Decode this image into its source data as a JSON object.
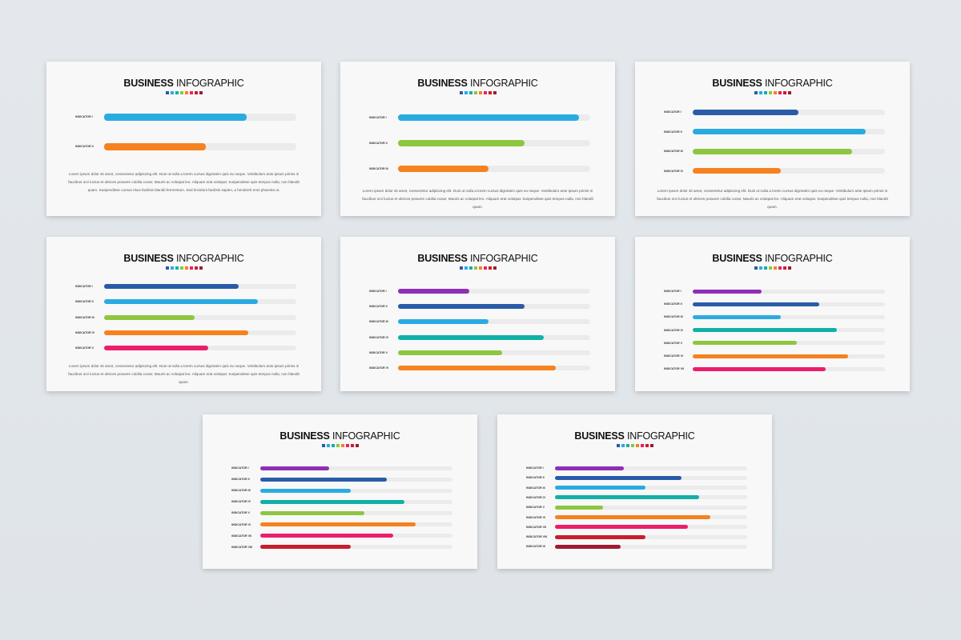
{
  "title_bold": "BUSINESS",
  "title_light": "INFOGRAPHIC",
  "dot_colors": [
    "#2a5ba8",
    "#29abe2",
    "#12b0a6",
    "#8dc63f",
    "#f5821f",
    "#ec1e6b",
    "#c81e2d",
    "#9e1b32"
  ],
  "paragraph_a": "Lorem ipsum dolor sit amet, consectetur adipiscing elit. Duis ut nulla a lorem cursus dignissim quis eu neque. Vestibulum ante ipsum primis in faucibus orci luctus et ultrices posuere cubilia curae; Mauris ac volutpat leo. Aliquam erat volutpat. Suspendisse quis tempus nulla, non blandit quam. Suspendisse cursus risus facilisis blandit fermentum. Sed tincidunt facilisis sapien, a hendrerit eros pharetra ut.",
  "paragraph_b": "Lorem ipsum dolor sit amet, consectetur adipiscing elit. Duis ut nulla a lorem cursus dignissim quis eu neque. Vestibulum ante ipsum primis in faucibus orci luctus et ultrices posuere cubilia curae; Mauris ac volutpat leo. Aliquam erat volutpat. Suspendisse quis tempus nulla, non blandit quam.",
  "chart_data": [
    {
      "type": "bar",
      "categories": [
        "INDICATOR I",
        "INDICATOR II"
      ],
      "values": [
        0.74,
        0.53
      ],
      "colors": [
        "#29abe2",
        "#f5821f"
      ],
      "paragraph": "paragraph_a"
    },
    {
      "type": "bar",
      "categories": [
        "INDICATOR I",
        "INDICATOR II",
        "INDICATOR III"
      ],
      "values": [
        0.94,
        0.66,
        0.47
      ],
      "colors": [
        "#29abe2",
        "#8dc63f",
        "#f5821f"
      ],
      "paragraph": "paragraph_b"
    },
    {
      "type": "bar",
      "categories": [
        "INDICATOR I",
        "INDICATOR II",
        "INDICATOR III",
        "INDICATOR IV"
      ],
      "values": [
        0.55,
        0.9,
        0.83,
        0.46
      ],
      "colors": [
        "#2a5ba8",
        "#29abe2",
        "#8dc63f",
        "#f5821f"
      ],
      "paragraph": "paragraph_b"
    },
    {
      "type": "bar",
      "categories": [
        "INDICATOR I",
        "INDICATOR II",
        "INDICATOR III",
        "INDICATOR IV",
        "INDICATOR V"
      ],
      "values": [
        0.7,
        0.8,
        0.47,
        0.75,
        0.54
      ],
      "colors": [
        "#2a5ba8",
        "#29abe2",
        "#8dc63f",
        "#f5821f",
        "#ec1e6b"
      ],
      "paragraph": "paragraph_b"
    },
    {
      "type": "bar",
      "categories": [
        "INDICATOR I",
        "INDICATOR II",
        "INDICATOR III",
        "INDICATOR IV",
        "INDICATOR V",
        "INDICATOR VI"
      ],
      "values": [
        0.37,
        0.66,
        0.47,
        0.76,
        0.54,
        0.82
      ],
      "colors": [
        "#8e2fb5",
        "#2a5ba8",
        "#29abe2",
        "#12b0a6",
        "#8dc63f",
        "#f5821f"
      ]
    },
    {
      "type": "bar",
      "categories": [
        "INDICATOR I",
        "INDICATOR II",
        "INDICATOR III",
        "INDICATOR IV",
        "INDICATOR V",
        "INDICATOR VI",
        "INDICATOR VII"
      ],
      "values": [
        0.36,
        0.66,
        0.46,
        0.75,
        0.54,
        0.81,
        0.69
      ],
      "colors": [
        "#8e2fb5",
        "#2a5ba8",
        "#29abe2",
        "#12b0a6",
        "#8dc63f",
        "#f5821f",
        "#ec1e6b"
      ]
    },
    {
      "type": "bar",
      "categories": [
        "INDICATOR I",
        "INDICATOR II",
        "INDICATOR III",
        "INDICATOR IV",
        "INDICATOR V",
        "INDICATOR VI",
        "INDICATOR VII",
        "INDICATOR VIII"
      ],
      "values": [
        0.36,
        0.66,
        0.47,
        0.75,
        0.54,
        0.81,
        0.69,
        0.47
      ],
      "colors": [
        "#8e2fb5",
        "#2a5ba8",
        "#29abe2",
        "#12b0a6",
        "#8dc63f",
        "#f5821f",
        "#ec1e6b",
        "#c81e2d"
      ]
    },
    {
      "type": "bar",
      "categories": [
        "INDICATOR I",
        "INDICATOR II",
        "INDICATOR III",
        "INDICATOR IV",
        "INDICATOR V",
        "INDICATOR VI",
        "INDICATOR VII",
        "INDICATOR VIII",
        "INDICATOR IX"
      ],
      "values": [
        0.36,
        0.66,
        0.47,
        0.75,
        0.25,
        0.81,
        0.69,
        0.47,
        0.34
      ],
      "colors": [
        "#8e2fb5",
        "#2a5ba8",
        "#29abe2",
        "#12b0a6",
        "#8dc63f",
        "#f5821f",
        "#ec1e6b",
        "#c81e2d",
        "#9e1b32"
      ]
    }
  ]
}
